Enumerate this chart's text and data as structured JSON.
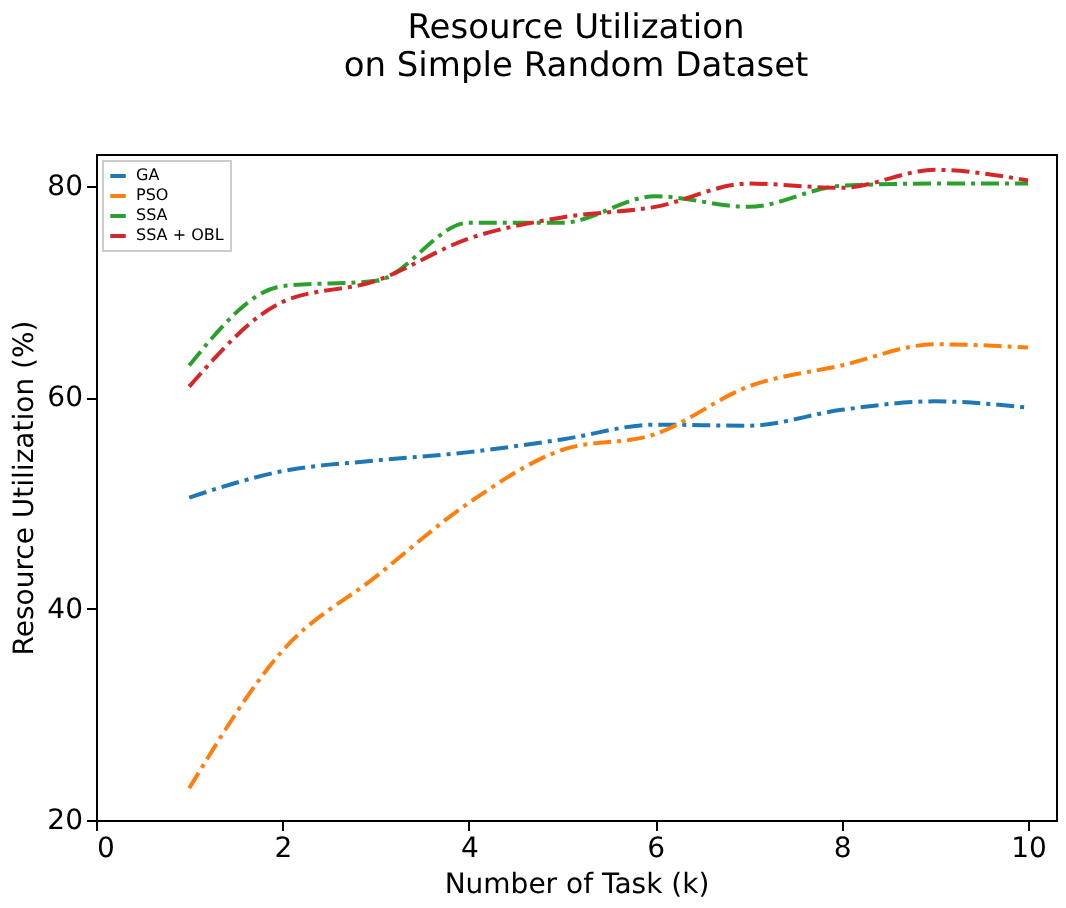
{
  "chart_data": {
    "type": "line",
    "title": "Resource Utilization\non Simple Random Dataset",
    "xlabel": "Number of Task (k)",
    "ylabel": "Resource Utilization (%)",
    "x": [
      1,
      2,
      3,
      4,
      5,
      6,
      7,
      8,
      9,
      10
    ],
    "series": [
      {
        "name": "GA",
        "color": "#1f77b4",
        "values": [
          50.5,
          53,
          54,
          54.8,
          56,
          57.4,
          57.3,
          58.8,
          59.6,
          59
        ]
      },
      {
        "name": "PSO",
        "color": "#ff7f0e",
        "values": [
          23,
          36,
          43,
          50,
          55,
          56.5,
          61,
          63,
          65,
          64.7
        ]
      },
      {
        "name": "SSA",
        "color": "#2ca02c",
        "values": [
          63,
          70.5,
          71,
          76.5,
          76.5,
          79,
          78,
          80,
          80.2,
          80.2
        ]
      },
      {
        "name": "SSA + OBL",
        "color": "#d62728",
        "values": [
          61,
          69,
          71,
          75,
          77,
          78,
          80.2,
          79.8,
          81.5,
          80.5
        ]
      }
    ],
    "xlim": [
      0,
      10.3
    ],
    "ylim": [
      20,
      83
    ],
    "xticks": [
      0,
      2,
      4,
      6,
      8,
      10
    ],
    "yticks": [
      20,
      40,
      60,
      80
    ],
    "legend": "top left",
    "grid": false,
    "line_style": "dashed"
  }
}
